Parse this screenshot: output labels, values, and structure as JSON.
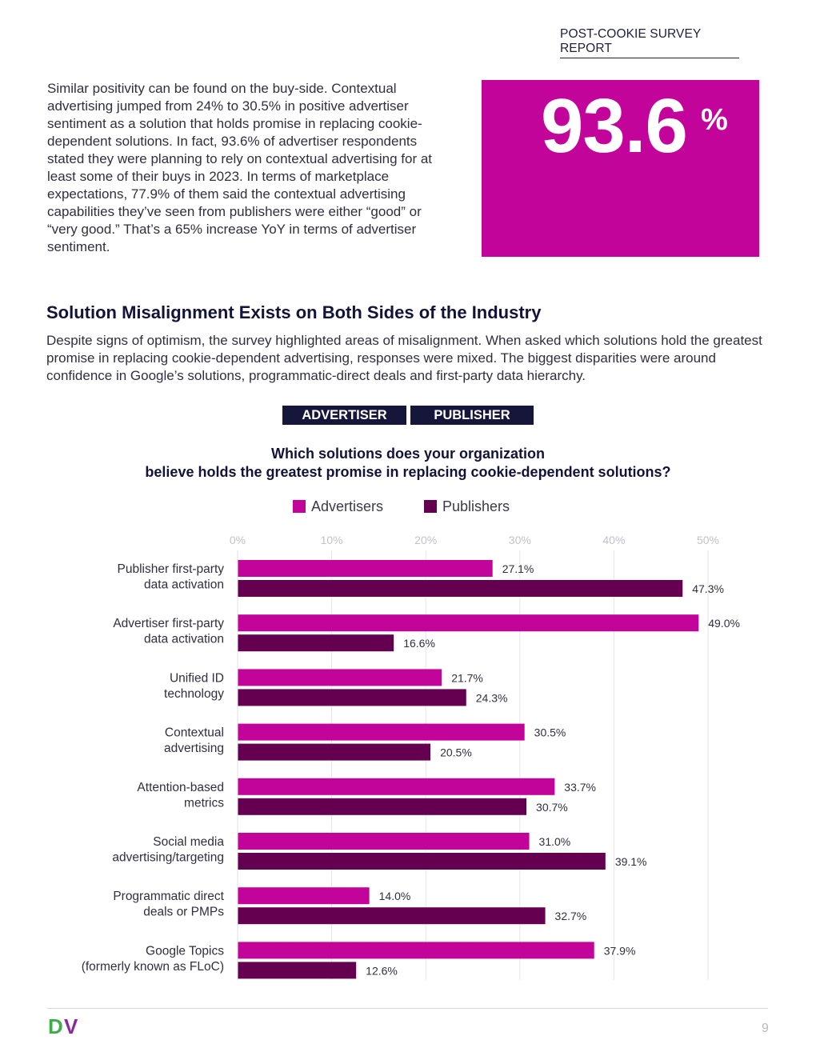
{
  "header": {
    "report_tag": "POST-COOKIE SURVEY REPORT"
  },
  "intro": {
    "paragraph": "Similar positivity can be found on the buy-side. Contextual advertising jumped from 24% to 30.5% in positive advertiser sentiment as a solution that holds promise in replacing cookie-dependent solutions. In fact, 93.6% of advertiser respondents stated they were planning to rely on contextual advertising for at least some of their buys in 2023. In terms of marketplace expectations, 77.9% of them said the contextual advertising capabilities they’ve seen from publishers were either “good” or “very good.” That’s a 65% increase YoY in terms of advertiser sentiment."
  },
  "stat": {
    "number": "93.6",
    "unit": "%",
    "color": "#c3049a"
  },
  "section": {
    "title": "Solution Misalignment Exists on Both Sides of the Industry",
    "body": "Despite signs of optimism, the survey highlighted areas of misalignment. When asked which solutions hold the greatest promise in replacing cookie-dependent advertising, responses were mixed. The biggest disparities were around confidence in Google’s solutions, programmatic-direct deals and first-party data hierarchy."
  },
  "tabs": [
    {
      "label": "ADVERTISER"
    },
    {
      "label": "PUBLISHER"
    }
  ],
  "chart_data": {
    "type": "bar",
    "orientation": "horizontal",
    "title_lines": [
      "Which solutions does your organization",
      "believe holds the greatest promise in replacing cookie-dependent solutions?"
    ],
    "xlim": [
      0,
      50
    ],
    "ticks": [
      0,
      10,
      20,
      30,
      40,
      50
    ],
    "tick_labels": [
      "0%",
      "10%",
      "20%",
      "30%",
      "40%",
      "50%"
    ],
    "grid": true,
    "legend_position": "top-center",
    "categories": [
      [
        "Publisher first-party",
        "data activation"
      ],
      [
        "Advertiser first-party",
        "data activation"
      ],
      [
        "Unified ID",
        "technology"
      ],
      [
        "Contextual",
        "advertising"
      ],
      [
        "Attention-based",
        "metrics"
      ],
      [
        "Social media",
        "advertising/targeting"
      ],
      [
        "Programmatic direct",
        "deals or PMPs"
      ],
      [
        "Google Topics",
        "(formerly known as FLoC)"
      ]
    ],
    "series": [
      {
        "name": "Advertisers",
        "color": "#c3049a",
        "values": [
          27.1,
          49.0,
          21.7,
          30.5,
          33.7,
          31.0,
          14.0,
          37.9
        ]
      },
      {
        "name": "Publishers",
        "color": "#650050",
        "values": [
          47.3,
          16.6,
          24.3,
          20.5,
          30.7,
          39.1,
          32.7,
          12.6
        ]
      }
    ]
  },
  "footer": {
    "logo_text": "DV",
    "logo_green": "#3fae49",
    "logo_purple": "#8a2a9c",
    "page_number": "9"
  }
}
